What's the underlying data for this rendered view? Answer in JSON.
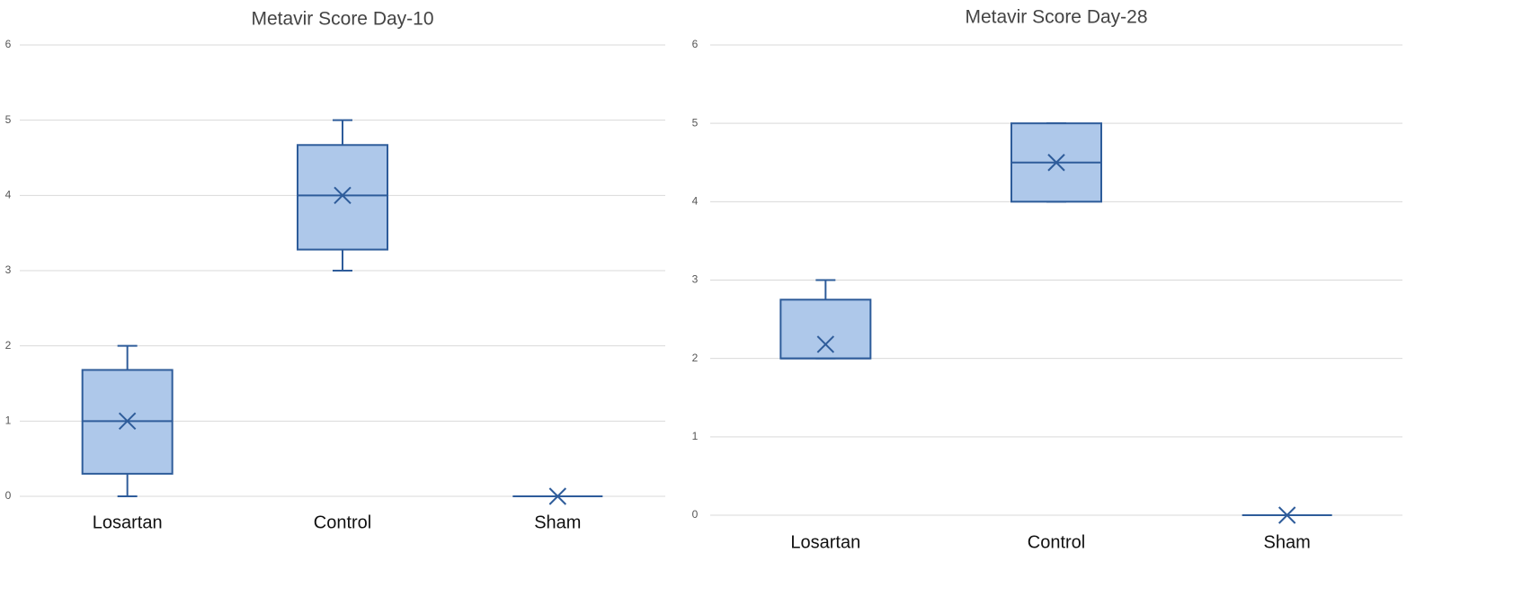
{
  "chart_data": [
    {
      "type": "box",
      "title": "Metavir Score Day-10",
      "categories": [
        "Losartan",
        "Control",
        "Sham"
      ],
      "boxes": [
        {
          "min": 0,
          "q1": 0.3,
          "median": 1,
          "q3": 1.68,
          "max": 2,
          "mean": 1
        },
        {
          "min": 3,
          "q1": 3.28,
          "median": 4,
          "q3": 4.67,
          "max": 5,
          "mean": 4
        },
        {
          "min": 0,
          "q1": 0,
          "median": 0,
          "q3": 0,
          "max": 0,
          "mean": 0
        }
      ],
      "color": "#aec8ea",
      "edge_color": "#2e5c9a",
      "ylim": [
        0,
        6
      ],
      "yticks": [
        0,
        1,
        2,
        3,
        4,
        5,
        6
      ],
      "grid": true
    },
    {
      "type": "box",
      "title": "Metavir Score Day-28",
      "categories": [
        "Losartan",
        "Control",
        "Sham"
      ],
      "boxes": [
        {
          "min": 2,
          "q1": 2,
          "median": 2,
          "q3": 2.75,
          "max": 3,
          "mean": 2.18
        },
        {
          "min": 4,
          "q1": 4,
          "median": 4.5,
          "q3": 5,
          "max": 5,
          "mean": 4.5
        },
        {
          "min": 0,
          "q1": 0,
          "median": 0,
          "q3": 0,
          "max": 0,
          "mean": 0
        }
      ],
      "color": "#aec8ea",
      "edge_color": "#2e5c9a",
      "ylim": [
        0,
        6
      ],
      "yticks": [
        0,
        1,
        2,
        3,
        4,
        5,
        6
      ],
      "grid": true
    }
  ]
}
